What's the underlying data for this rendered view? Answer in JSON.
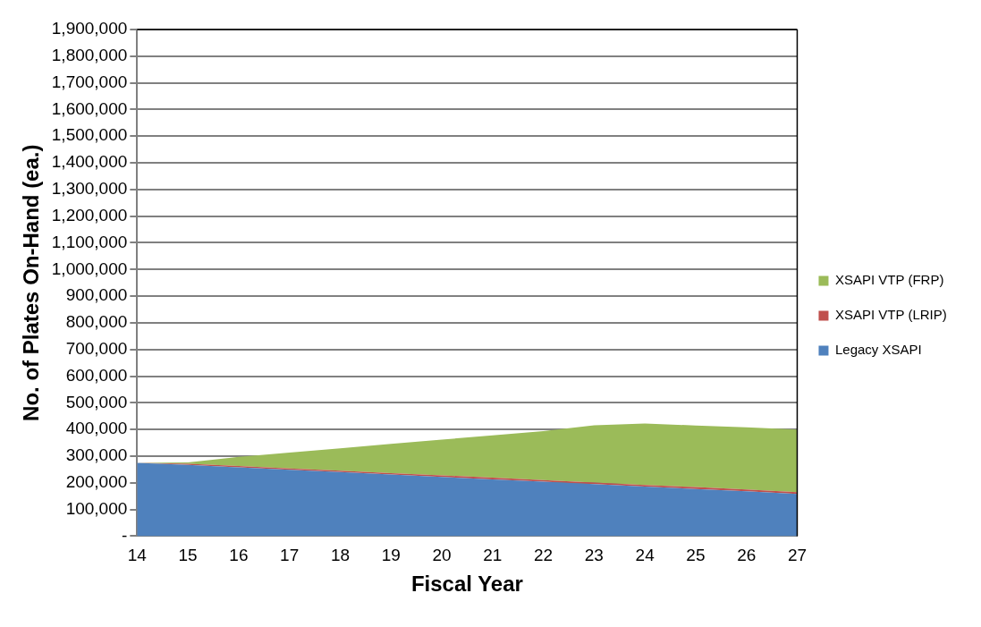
{
  "chart_data": {
    "type": "area",
    "stacked": true,
    "xlabel": "Fiscal Year",
    "ylabel": "No. of Plates On-Hand (ea.)",
    "categories": [
      "14",
      "15",
      "16",
      "17",
      "18",
      "19",
      "20",
      "21",
      "22",
      "23",
      "24",
      "25",
      "26",
      "27"
    ],
    "series": [
      {
        "name": "Legacy XSAPI",
        "color": "#4f81bd",
        "values": [
          275000,
          267000,
          258000,
          249000,
          240000,
          231000,
          222000,
          213000,
          204000,
          195000,
          186000,
          177000,
          168000,
          158000
        ]
      },
      {
        "name": "XSAPI VTP (LRIP)",
        "color": "#c0504d",
        "values": [
          0,
          4000,
          5000,
          5000,
          5000,
          5000,
          6000,
          6000,
          6000,
          6000,
          6000,
          7000,
          7000,
          7000
        ]
      },
      {
        "name": "XSAPI VTP (FRP)",
        "color": "#9bbb59",
        "values": [
          0,
          5000,
          34000,
          59000,
          84000,
          110000,
          134000,
          159000,
          184000,
          215000,
          230000,
          231000,
          233000,
          235000
        ]
      }
    ],
    "ylim": [
      0,
      1900000
    ],
    "yticks": [
      {
        "value": 0,
        "label": "-"
      },
      {
        "value": 100000,
        "label": "100,000"
      },
      {
        "value": 200000,
        "label": "200,000"
      },
      {
        "value": 300000,
        "label": "300,000"
      },
      {
        "value": 400000,
        "label": "400,000"
      },
      {
        "value": 500000,
        "label": "500,000"
      },
      {
        "value": 600000,
        "label": "600,000"
      },
      {
        "value": 700000,
        "label": "700,000"
      },
      {
        "value": 800000,
        "label": "800,000"
      },
      {
        "value": 900000,
        "label": "900,000"
      },
      {
        "value": 1000000,
        "label": "1,000,000"
      },
      {
        "value": 1100000,
        "label": "1,100,000"
      },
      {
        "value": 1200000,
        "label": "1,200,000"
      },
      {
        "value": 1300000,
        "label": "1,300,000"
      },
      {
        "value": 1400000,
        "label": "1,400,000"
      },
      {
        "value": 1500000,
        "label": "1,500,000"
      },
      {
        "value": 1600000,
        "label": "1,600,000"
      },
      {
        "value": 1700000,
        "label": "1,700,000"
      },
      {
        "value": 1800000,
        "label": "1,800,000"
      },
      {
        "value": 1900000,
        "label": "1,900,000"
      }
    ],
    "grid": "y",
    "legend": "right"
  }
}
